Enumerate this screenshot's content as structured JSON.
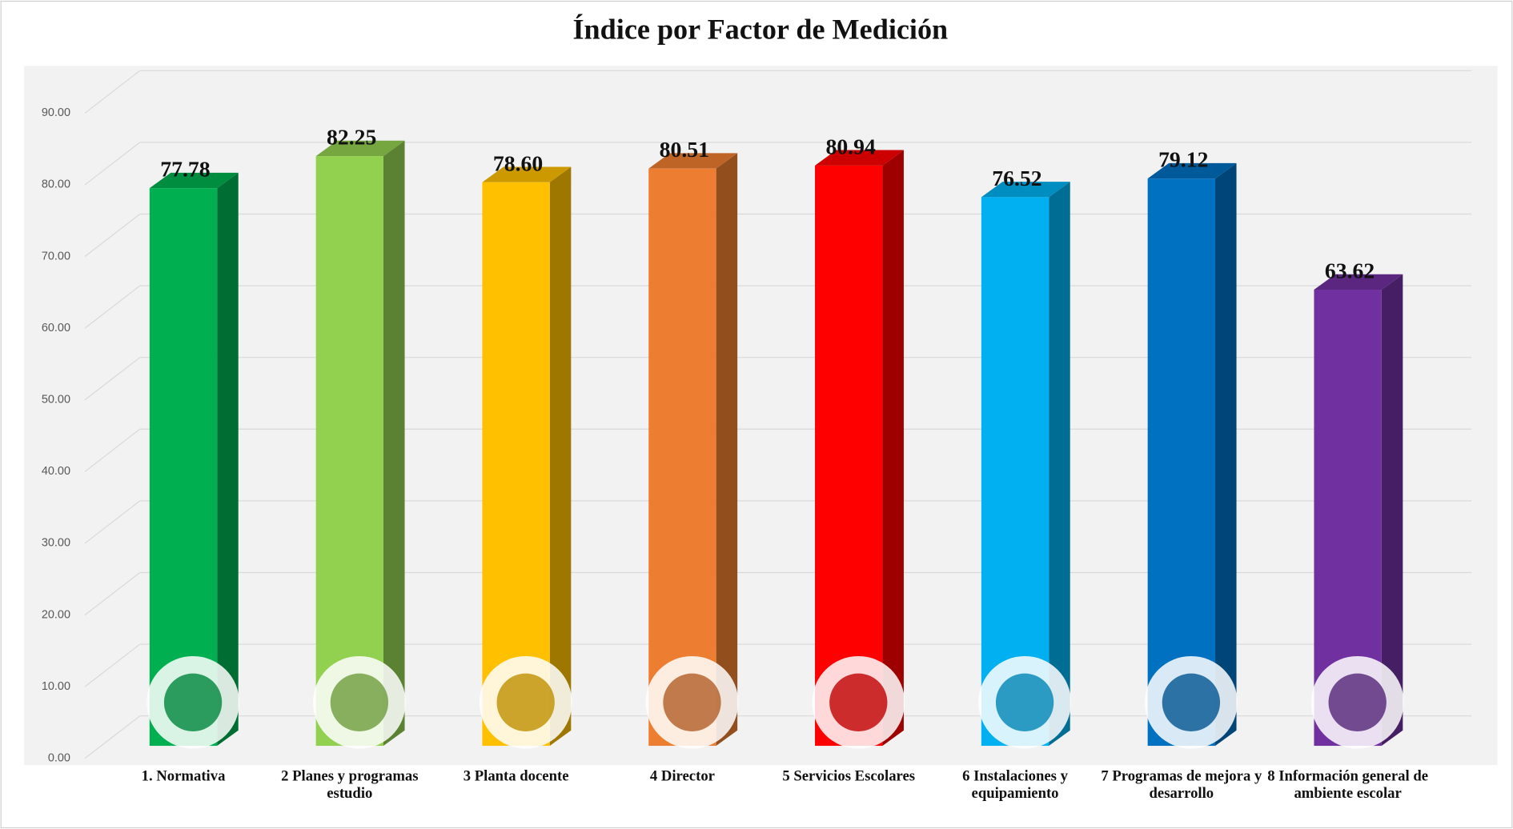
{
  "chart_data": {
    "type": "bar3d",
    "title": "Índice por Factor de Medición",
    "categories": [
      "1. Normativa",
      "2 Planes y programas estudio",
      "3 Planta docente",
      "4 Director",
      "5 Servicios Escolares",
      "6 Instalaciones y equipamiento",
      "7 Programas de mejora y desarrollo",
      "8 Información general de ambiente escolar"
    ],
    "values": [
      77.78,
      82.25,
      78.6,
      80.51,
      80.94,
      76.52,
      79.12,
      63.62
    ],
    "value_labels": [
      "77.78",
      "82.25",
      "78.60",
      "80.51",
      "80.94",
      "76.52",
      "79.12",
      "63.62"
    ],
    "colors": [
      "#00b050",
      "#92d050",
      "#ffc000",
      "#ed7d31",
      "#ff0000",
      "#00b0f0",
      "#0070c0",
      "#7030a0"
    ],
    "ylim": [
      0,
      90
    ],
    "yticks": [
      {
        "value": 0,
        "label": "0.00"
      },
      {
        "value": 10,
        "label": "10.00"
      },
      {
        "value": 20,
        "label": "20.00"
      },
      {
        "value": 30,
        "label": "30.00"
      },
      {
        "value": 40,
        "label": "40.00"
      },
      {
        "value": 50,
        "label": "50.00"
      },
      {
        "value": 60,
        "label": "60.00"
      },
      {
        "value": 70,
        "label": "70.00"
      },
      {
        "value": 80,
        "label": "80.00"
      },
      {
        "value": 90,
        "label": "90.00"
      }
    ],
    "grid": true
  }
}
